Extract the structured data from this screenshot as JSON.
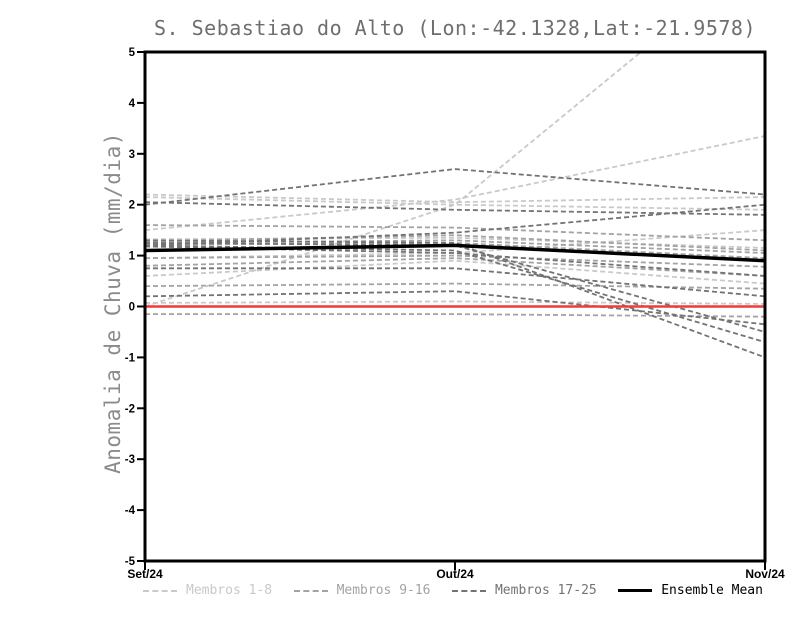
{
  "chart_data": {
    "type": "line",
    "title": "S. Sebastiao do Alto (Lon:-42.1328,Lat:-21.9578)",
    "ylabel": "Anomalia de Chuva (mm/dia)",
    "xlabel": "",
    "x_categories": [
      "Set/24",
      "Out/24",
      "Nov/24"
    ],
    "ylim": [
      -5,
      5
    ],
    "y_ticks": [
      5,
      4,
      3,
      2,
      1,
      0,
      -1,
      -2,
      -3,
      -4,
      -5
    ],
    "grid": false,
    "legend_position": "bottom",
    "zero_line": {
      "value": 0,
      "color": "#ee3c3c"
    },
    "groups": [
      {
        "name": "Membros 1-8",
        "color": "#c9c9c9",
        "line_style": "dashed",
        "members": [
          [
            0.0,
            2.0,
            7.0
          ],
          [
            2.2,
            2.05,
            2.15
          ],
          [
            1.5,
            2.1,
            3.35
          ],
          [
            0.95,
            1.05,
            1.5
          ],
          [
            0.07,
            0.1,
            0.05
          ],
          [
            1.32,
            1.35,
            1.15
          ],
          [
            0.6,
            0.9,
            0.45
          ],
          [
            2.15,
            2.0,
            1.9
          ]
        ]
      },
      {
        "name": "Membros 9-16",
        "color": "#a3a3a3",
        "line_style": "dashed",
        "members": [
          [
            1.6,
            1.55,
            1.3
          ],
          [
            1.25,
            1.3,
            1.05
          ],
          [
            0.8,
            0.95,
            0.6
          ],
          [
            0.4,
            0.45,
            0.35
          ],
          [
            -0.15,
            -0.15,
            -0.2
          ],
          [
            1.22,
            1.25,
            0.95
          ],
          [
            0.95,
            1.0,
            0.78
          ],
          [
            1.28,
            1.4,
            1.1
          ]
        ]
      },
      {
        "name": "Membros 17-25",
        "color": "#737373",
        "line_style": "dashed",
        "members": [
          [
            2.0,
            2.7,
            2.2
          ],
          [
            2.05,
            1.9,
            1.8
          ],
          [
            1.2,
            1.45,
            2.0
          ],
          [
            1.25,
            1.2,
            -0.5
          ],
          [
            1.2,
            1.1,
            -0.7
          ],
          [
            1.3,
            1.25,
            -1.0
          ],
          [
            0.2,
            0.3,
            -0.35
          ],
          [
            0.75,
            0.75,
            0.2
          ],
          [
            1.18,
            1.05,
            0.6
          ]
        ]
      }
    ],
    "ensemble_mean": {
      "name": "Ensemble Mean",
      "color": "#000000",
      "values": [
        1.1,
        1.2,
        0.9
      ]
    }
  }
}
